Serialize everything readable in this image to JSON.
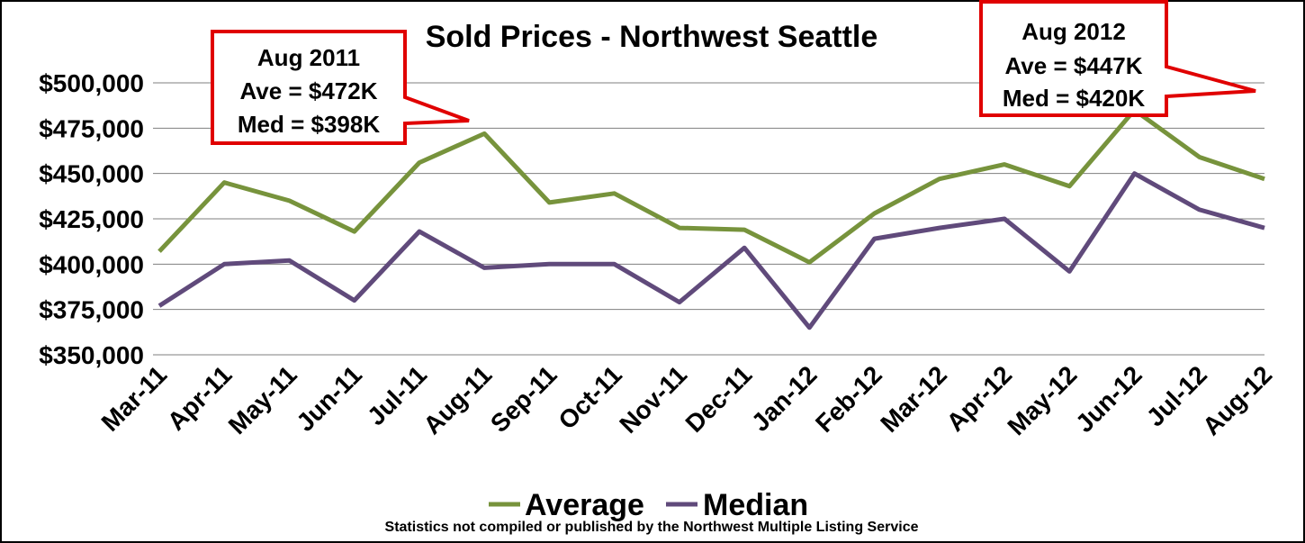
{
  "chart_data": {
    "type": "line",
    "title": "Sold Prices - Northwest Seattle",
    "xlabel": "",
    "ylabel": "",
    "categories": [
      "Mar-11",
      "Apr-11",
      "May-11",
      "Jun-11",
      "Jul-11",
      "Aug-11",
      "Sep-11",
      "Oct-11",
      "Nov-11",
      "Dec-11",
      "Jan-12",
      "Feb-12",
      "Mar-12",
      "Apr-12",
      "May-12",
      "Jun-12",
      "Jul-12",
      "Aug-12"
    ],
    "series": [
      {
        "name": "Average",
        "color": "#77933c",
        "values": [
          407000,
          445000,
          435000,
          418000,
          456000,
          472000,
          434000,
          439000,
          420000,
          419000,
          401000,
          428000,
          447000,
          455000,
          443000,
          485000,
          459000,
          447000
        ]
      },
      {
        "name": "Median",
        "color": "#604a7b",
        "values": [
          377000,
          400000,
          402000,
          380000,
          418000,
          398000,
          400000,
          400000,
          379000,
          409000,
          365000,
          414000,
          420000,
          425000,
          396000,
          450000,
          430000,
          420000
        ]
      }
    ],
    "ylim": [
      350000,
      500000
    ],
    "yticks": [
      "$350,000",
      "$375,000",
      "$400,000",
      "$425,000",
      "$450,000",
      "$475,000",
      "$500,000"
    ],
    "grid": true,
    "legend_position": "bottom",
    "annotations": [
      {
        "lines": [
          "Aug 2011",
          "Ave = $472K",
          "Med = $398K"
        ]
      },
      {
        "lines": [
          "Aug 2012",
          "Ave = $447K",
          "Med = $420K"
        ]
      }
    ],
    "footnote": "Statistics  not compiled or published by the Northwest Multiple Listing Service"
  }
}
